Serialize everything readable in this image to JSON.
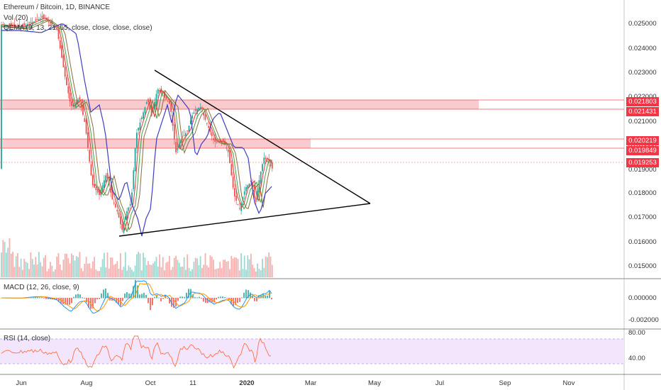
{
  "legends": {
    "main": "Ethereum / Bitcoin, 1D, BINANCE",
    "volume": "Vol (20)",
    "qema": "QEMA (9, 13, 21, 55, close, close, close, close)",
    "macd": "MACD (12, 26, close, 9)",
    "rsi": "RSI (14, close)"
  },
  "price_axis": {
    "ticks": [
      "0.025000",
      "0.024000",
      "0.023000",
      "0.022000",
      "0.021000",
      "0.020000",
      "0.019000",
      "0.018000",
      "0.017000",
      "0.016000",
      "0.015000"
    ]
  },
  "price_markers": [
    "0.021803",
    "0.021431",
    "0.020219",
    "0.019849",
    "0.019253"
  ],
  "macd_axis": {
    "ticks": [
      "0.000000",
      "-0.002000"
    ]
  },
  "rsi_axis": {
    "ticks": [
      "80.00",
      "40.00"
    ]
  },
  "time_axis": {
    "labels": [
      "Jun",
      "Aug",
      "Oct",
      "11",
      "2020",
      "Mar",
      "May",
      "Jul",
      "Sep",
      "Nov"
    ]
  },
  "colors": {
    "up": "#26a69a",
    "down": "#ef5350",
    "zone": "#f8c2c5",
    "rsi_bg": "#f3e5fb",
    "trendline": "#000000"
  }
}
